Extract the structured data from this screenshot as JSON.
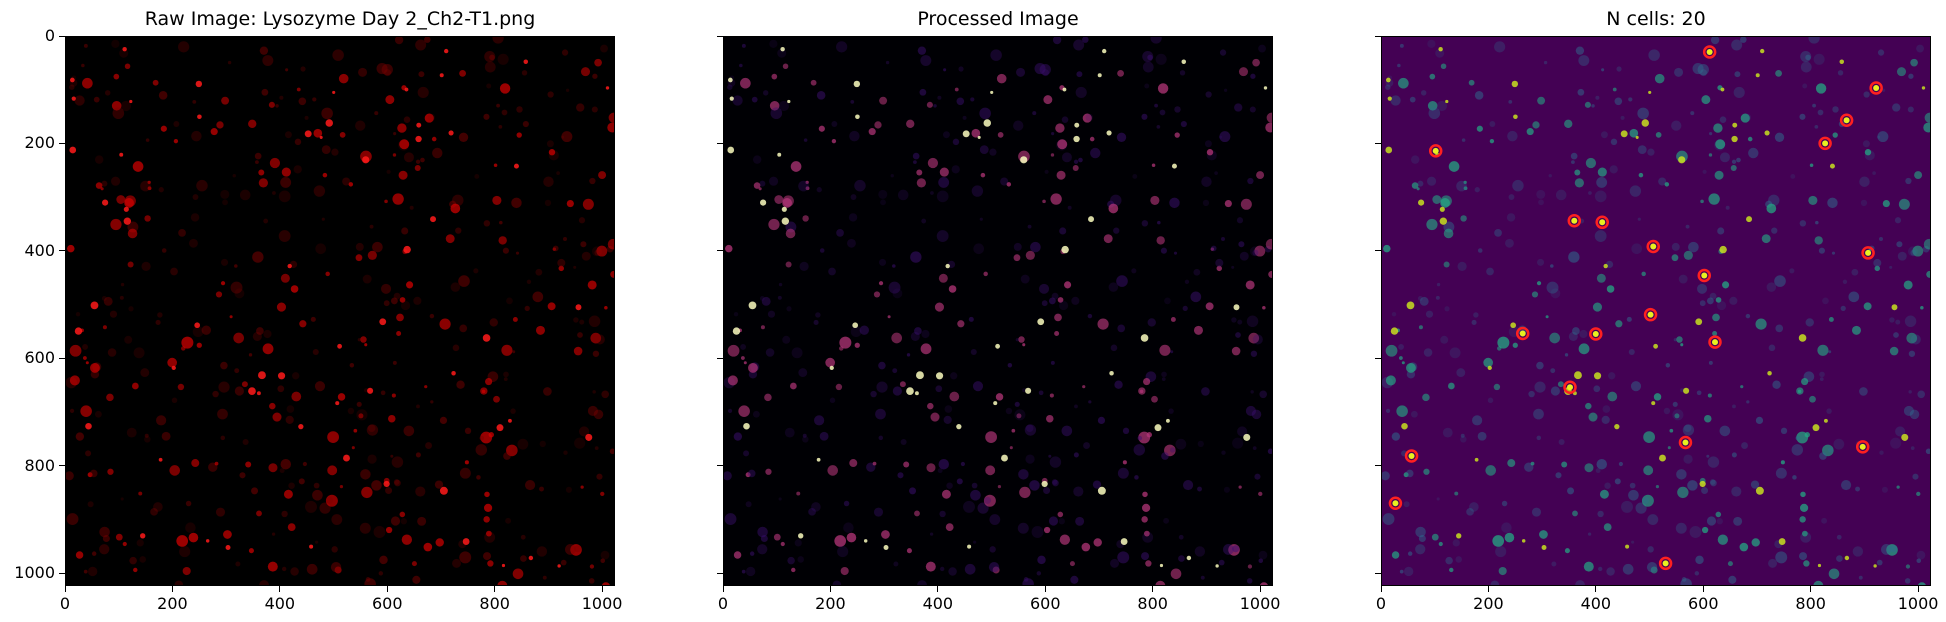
{
  "figure": {
    "panels": [
      {
        "title": "Raw Image: Lysozyme Day 2_Ch2-T1.png",
        "colormap": "red",
        "background": "#000000",
        "show_y_tick_labels": true
      },
      {
        "title": "Processed Image",
        "colormap": "magma",
        "background": "#000004",
        "show_y_tick_labels": false
      },
      {
        "title": "N cells: 20",
        "colormap": "viridis",
        "background": "#440154",
        "show_y_tick_labels": false,
        "detection_marker_color": "#ff2020"
      }
    ],
    "x_axis": {
      "ticks": [
        "0",
        "200",
        "400",
        "600",
        "800",
        "1000"
      ],
      "range": [
        0,
        1024
      ]
    },
    "y_axis": {
      "ticks": [
        "0",
        "200",
        "400",
        "600",
        "800",
        "1000"
      ],
      "range": [
        0,
        1024
      ]
    },
    "detected_cells": [
      [
        610,
        28
      ],
      [
        920,
        95
      ],
      [
        865,
        155
      ],
      [
        825,
        198
      ],
      [
        100,
        212
      ],
      [
        358,
        342
      ],
      [
        410,
        345
      ],
      [
        505,
        390
      ],
      [
        905,
        402
      ],
      [
        600,
        444
      ],
      [
        500,
        517
      ],
      [
        620,
        568
      ],
      [
        262,
        552
      ],
      [
        398,
        553
      ],
      [
        350,
        652
      ],
      [
        565,
        755
      ],
      [
        895,
        763
      ],
      [
        55,
        780
      ],
      [
        25,
        868
      ],
      [
        528,
        980
      ]
    ]
  }
}
